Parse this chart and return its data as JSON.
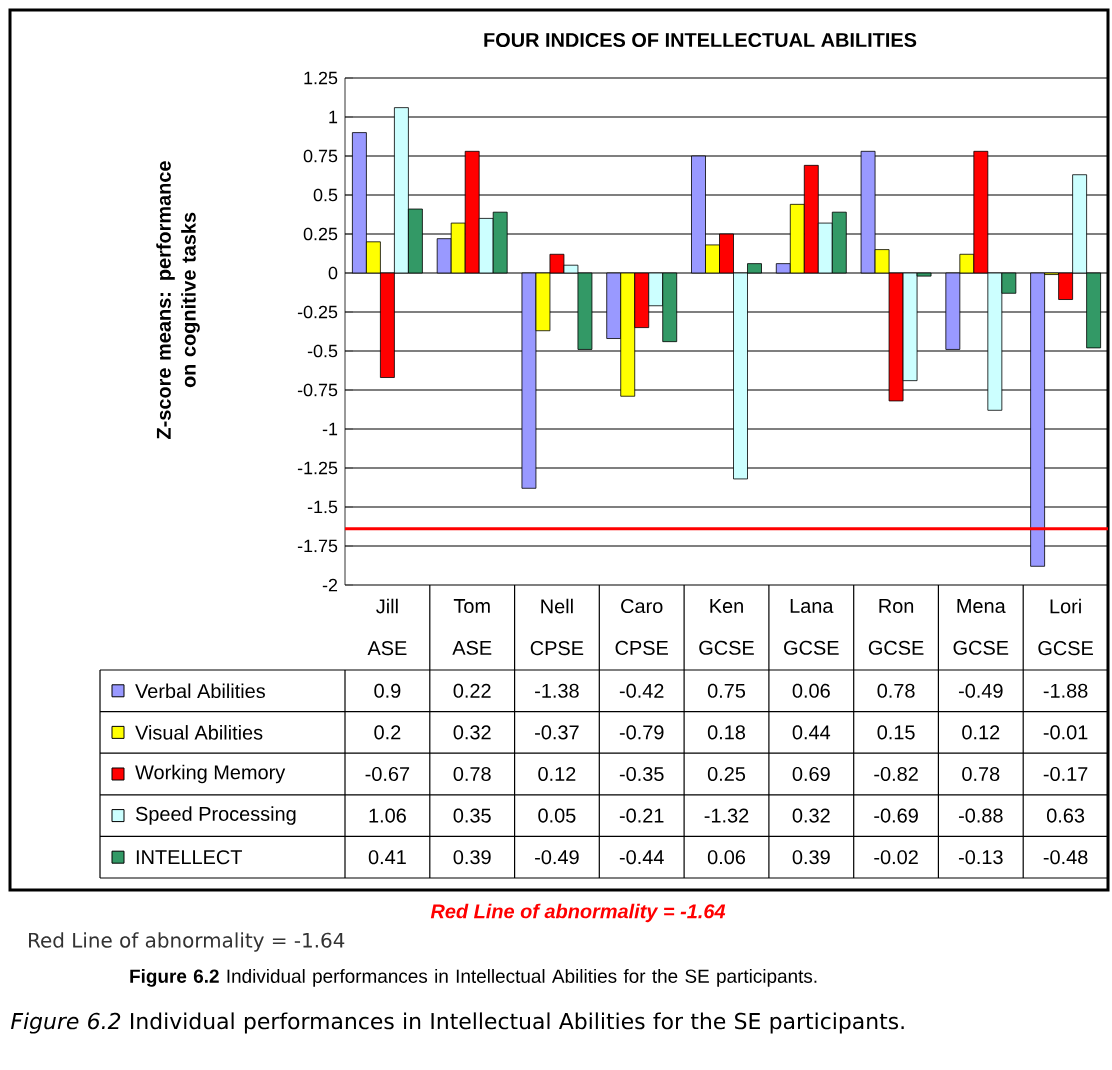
{
  "chart_data": {
    "type": "bar",
    "title": "FOUR INDICES OF INTELLECTUAL ABILITIES",
    "ylabel": "Z-score means: performance on cognitive tasks",
    "categories": [
      "Jill ASE",
      "Tom ASE",
      "Nell CPSE",
      "Caro CPSE",
      "Ken GCSE",
      "Lana GCSE",
      "Ron GCSE",
      "Mena GCSE",
      "Lori GCSE"
    ],
    "series": [
      {
        "name": "Verbal Abilities",
        "color": "#9999ff",
        "values": [
          0.9,
          0.22,
          -1.38,
          -0.42,
          0.75,
          0.06,
          0.78,
          -0.49,
          -1.88
        ]
      },
      {
        "name": "Visual Abilities",
        "color": "#ffff00",
        "values": [
          0.2,
          0.32,
          -0.37,
          -0.79,
          0.18,
          0.44,
          0.15,
          0.12,
          -0.01
        ]
      },
      {
        "name": "Working Memory",
        "color": "#ff0000",
        "values": [
          -0.67,
          0.78,
          0.12,
          -0.35,
          0.25,
          0.69,
          -0.82,
          0.78,
          -0.17
        ]
      },
      {
        "name": "Speed Processing",
        "color": "#ccffff",
        "values": [
          1.06,
          0.35,
          0.05,
          -0.21,
          -1.32,
          0.32,
          -0.69,
          -0.88,
          0.63
        ]
      },
      {
        "name": "INTELLECT",
        "color": "#339966",
        "values": [
          0.41,
          0.39,
          -0.49,
          -0.44,
          0.06,
          0.39,
          -0.02,
          -0.13,
          -0.48
        ]
      }
    ],
    "ylim": [
      -2,
      1.25
    ],
    "yticks": [
      -2,
      -1.75,
      -1.5,
      -1.25,
      -1,
      -0.75,
      -0.5,
      -0.25,
      0,
      0.25,
      0.5,
      0.75,
      1,
      1.25
    ],
    "grid": "y",
    "legend": "bottom",
    "data_labels": true,
    "ref_lines": [
      {
        "axis": "y",
        "value": -1.64,
        "label": "Red Line of abnormality = -1.64",
        "color": "#ff0000",
        "line_style": "solid"
      }
    ],
    "annotations": [
      "Red Line of abnormality = -1.64",
      "**Figure 6.2** Individual performances in Intellectual Abilities for the SE participants.",
      "*Figure 6.2* Individual performances in Intellectual Abilities for the SE participants."
    ]
  }
}
